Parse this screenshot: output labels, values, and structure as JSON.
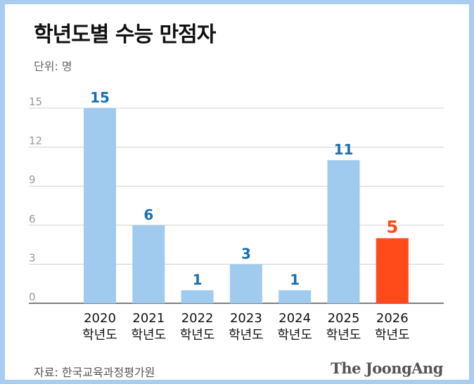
{
  "chart_data": {
    "type": "bar",
    "title": "학년도별 수능 만점자",
    "unit_label": "단위: 명",
    "categories": [
      "2020",
      "2021",
      "2022",
      "2023",
      "2024",
      "2025",
      "2026"
    ],
    "category_suffix": "학년도",
    "values": [
      15,
      6,
      1,
      3,
      1,
      11,
      5
    ],
    "ylim": [
      0,
      15
    ],
    "yticks": [
      0,
      3,
      6,
      9,
      12,
      15
    ],
    "grid": true,
    "colors": {
      "bar": "#a0cbee",
      "highlight_bar": "#ff4a1a",
      "label": "#1a6fb0",
      "highlight_label": "#ff4a1a",
      "grid": "#d0d0d0",
      "axis_tick": "#999999"
    },
    "highlight_index": 6
  },
  "footer": {
    "source": "자료: 한국교육과정평가원",
    "brand": "The JoongAng"
  }
}
